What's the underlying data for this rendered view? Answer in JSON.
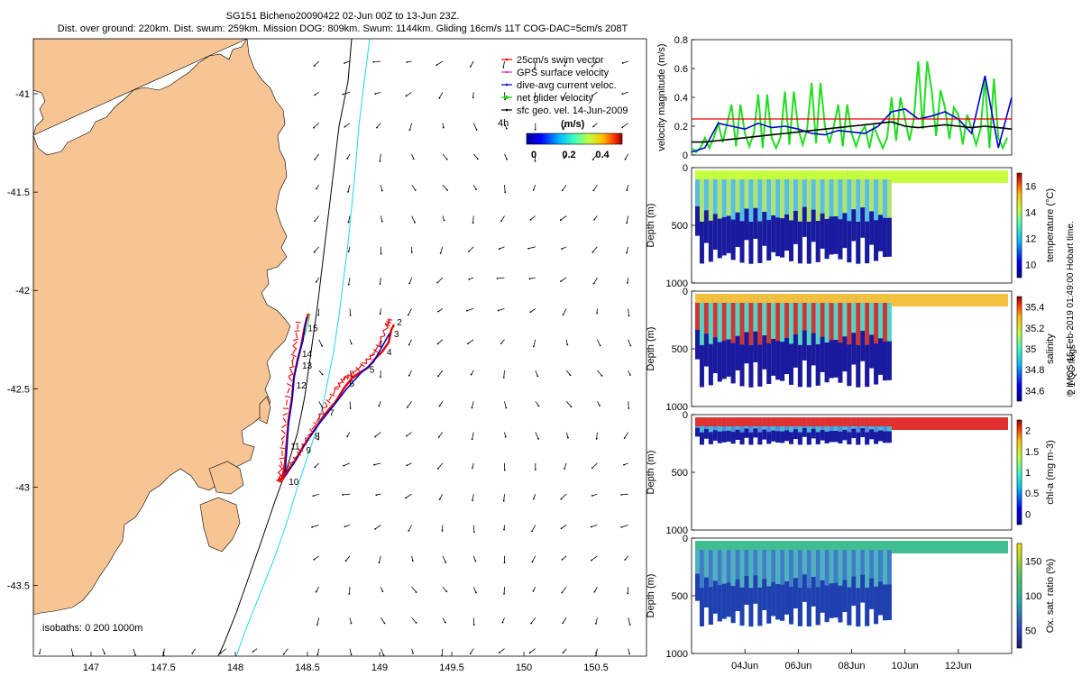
{
  "header": {
    "line1": "SG151 Bicheno20090422 02-Jun 00Z to 13-Jun 23Z.",
    "line2": "Dist. over ground: 220km. Dist. swum: 259km. Mission DOG: 809km. Swum: 1144km. Gliding 16cm/s 11T COG-DAC=5cm/s 208T"
  },
  "map": {
    "xticks": [
      "147",
      "147.5",
      "148",
      "148.5",
      "149",
      "149.5",
      "150",
      "150.5"
    ],
    "yticks": [
      "-41",
      "-41.5",
      "-42",
      "-42.5",
      "-43",
      "-43.5"
    ],
    "legend": [
      "25cm/s swim vector",
      "GPS surface velocity",
      "dive-avg current veloc.",
      "net glider velocity",
      "sfc geo. vel. 14-Jun-2009"
    ],
    "colorbar_title": "(m/s)",
    "colorbar_scale_label": "4h",
    "colorbar_ticks": [
      "0",
      "0.2",
      "0.4"
    ],
    "isobaths": "isobaths: 0   200  1000m",
    "day_labels": [
      "2",
      "3",
      "4",
      "5",
      "6",
      "7",
      "8",
      "9",
      "10",
      "11",
      "12",
      "13",
      "14",
      "15"
    ],
    "colors": {
      "land": "#f7c493",
      "track": "#e60000",
      "dac": "#0000cc",
      "isobath200": "#000000",
      "isobath1000": "#1ed8e6"
    }
  },
  "velocity": {
    "ylabel": "velocity magnitude (m/s)",
    "yticks": [
      "0",
      "0.2",
      "0.4",
      "0.6",
      "0.8"
    ],
    "swim_reference": 0.25,
    "ylim": [
      0,
      0.8
    ]
  },
  "panels": [
    {
      "ylabel": "Depth (m)",
      "yticks": [
        "0",
        "500",
        "1000"
      ],
      "cbar_label": "temperature (°C)",
      "cbar_ticks": [
        "10",
        "12",
        "14",
        "16"
      ]
    },
    {
      "ylabel": "Depth (m)",
      "yticks": [
        "0",
        "500",
        "1000"
      ],
      "cbar_label": "salinity",
      "cbar_ticks": [
        "34.6",
        "34.8",
        "35",
        "35.2",
        "35.4"
      ]
    },
    {
      "ylabel": "Depth (m)",
      "yticks": [
        "0",
        "500",
        "1000"
      ],
      "cbar_label": "chl-a (mg m-3)",
      "cbar_ticks": [
        "0",
        "0.5",
        "1",
        "1.5",
        "2"
      ]
    },
    {
      "ylabel": "Depth (m)",
      "yticks": [
        "0",
        "500",
        "1000"
      ],
      "cbar_label": "Ox. sat. ratio (%)",
      "cbar_ticks": [
        "50",
        "100",
        "150"
      ]
    }
  ],
  "time_axis": [
    "04Jun",
    "06Jun",
    "08Jun",
    "10Jun",
    "12Jun"
  ],
  "side_labels": {
    "flags": "2  1 QC flags",
    "credit": "© IMOS 15-Feb-2019 01:49:00 Hobart time."
  },
  "chart_data": [
    {
      "type": "scatter",
      "title": "SG151 Bicheno20090422 02-Jun 00Z to 13-Jun 23Z.",
      "xlabel": "",
      "ylabel": "",
      "xlim": [
        146.6,
        150.85
      ],
      "ylim": [
        -43.86,
        -40.72
      ],
      "glider_track": [
        [
          149.07,
          -42.15
        ],
        [
          149.05,
          -42.18
        ],
        [
          149.0,
          -42.27
        ],
        [
          148.95,
          -42.33
        ],
        [
          148.88,
          -42.38
        ],
        [
          148.8,
          -42.43
        ],
        [
          148.75,
          -42.45
        ],
        [
          148.7,
          -42.5
        ],
        [
          148.63,
          -42.58
        ],
        [
          148.57,
          -42.66
        ],
        [
          148.5,
          -42.75
        ],
        [
          148.44,
          -42.83
        ],
        [
          148.37,
          -42.9
        ],
        [
          148.33,
          -42.95
        ],
        [
          148.3,
          -42.97
        ],
        [
          148.32,
          -42.88
        ],
        [
          148.33,
          -42.75
        ],
        [
          148.35,
          -42.6
        ],
        [
          148.38,
          -42.45
        ],
        [
          148.4,
          -42.35
        ],
        [
          148.42,
          -42.25
        ],
        [
          148.44,
          -42.14
        ]
      ],
      "day_positions": [
        [
          149.07,
          -42.16
        ],
        [
          149.05,
          -42.22
        ],
        [
          149.0,
          -42.31
        ],
        [
          148.88,
          -42.4
        ],
        [
          148.74,
          -42.47
        ],
        [
          148.6,
          -42.62
        ],
        [
          148.5,
          -42.74
        ],
        [
          148.44,
          -42.81
        ],
        [
          148.32,
          -42.97
        ],
        [
          148.32,
          -42.79
        ],
        [
          148.36,
          -42.48
        ],
        [
          148.4,
          -42.38
        ],
        [
          148.4,
          -42.32
        ],
        [
          148.44,
          -42.19
        ],
        [
          148.44,
          -42.15
        ]
      ]
    },
    {
      "type": "line",
      "xlabel": "",
      "ylabel": "velocity magnitude (m/s)",
      "x": [
        2,
        2.5,
        3,
        3.5,
        4,
        4.5,
        5,
        5.5,
        6,
        6.5,
        7,
        7.5,
        8,
        8.5,
        9,
        9.5,
        10,
        10.5,
        11,
        11.5,
        12,
        12.5,
        13,
        13.5,
        14
      ],
      "ylim": [
        0,
        0.8
      ],
      "series": [
        {
          "values": [
            0.05,
            0.12,
            0.22,
            0.35,
            0.15,
            0.42,
            0.12,
            0.44,
            0.18,
            0.5,
            0.2,
            0.35,
            0.15,
            0.2,
            0.12,
            0.4,
            0.25,
            0.65,
            0.45,
            0.33,
            0.28,
            0.18,
            0.53,
            0.12,
            0.22
          ]
        },
        {
          "values": [
            0.02,
            0.05,
            0.22,
            0.2,
            0.18,
            0.22,
            0.19,
            0.2,
            0.18,
            0.15,
            0.14,
            0.17,
            0.16,
            0.15,
            0.2,
            0.3,
            0.32,
            0.25,
            0.27,
            0.3,
            0.25,
            0.15,
            0.55,
            0.05,
            0.4
          ]
        },
        {
          "values": [
            0.09,
            0.09,
            0.1,
            0.11,
            0.12,
            0.13,
            0.14,
            0.15,
            0.16,
            0.17,
            0.18,
            0.19,
            0.2,
            0.21,
            0.22,
            0.23,
            0.2,
            0.19,
            0.2,
            0.21,
            0.2,
            0.19,
            0.2,
            0.19,
            0.18
          ]
        },
        {
          "values": [
            0.25,
            0.25,
            0.25,
            0.25,
            0.25,
            0.25,
            0.25,
            0.25,
            0.25,
            0.25,
            0.25,
            0.25,
            0.25,
            0.25,
            0.25,
            0.25,
            0.25,
            0.25,
            0.25,
            0.25,
            0.25,
            0.25,
            0.25,
            0.25,
            0.25
          ]
        }
      ]
    }
  ]
}
